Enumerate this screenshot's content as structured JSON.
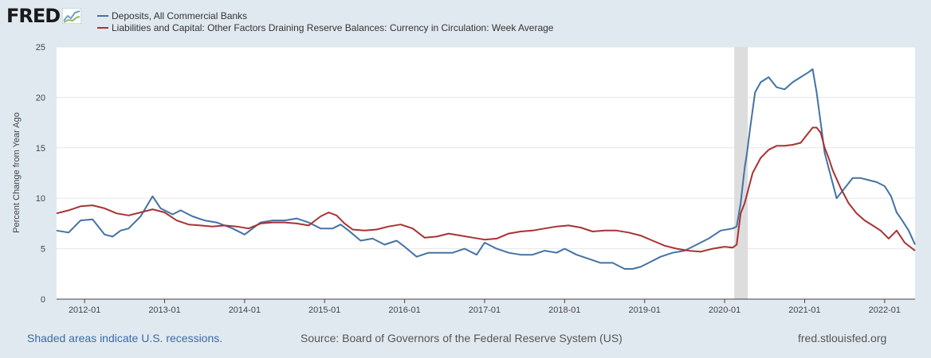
{
  "header": {
    "logo_text": "FRED",
    "logo_icon": "line-chart-icon"
  },
  "colors": {
    "deposits": "#4472a4",
    "currency": "#a83232",
    "recession": "#dddddd",
    "background": "#e1e9f0",
    "plot_bg": "#ffffff",
    "grid": "#e6e6e6",
    "link": "#3a6aa8"
  },
  "footer": {
    "recession_note": "Shaded areas indicate U.S. recessions.",
    "source": "Source: Board of Governors of the Federal Reserve System (US)",
    "site": "fred.stlouisfed.org"
  },
  "chart_data": {
    "type": "line",
    "title": "",
    "xlabel": "",
    "ylabel": "Percent Change from Year Ago",
    "ylim": [
      0,
      25
    ],
    "yticks": [
      "0",
      "5",
      "10",
      "15",
      "20",
      "25"
    ],
    "xlim": [
      2011.65,
      2022.38
    ],
    "xticks": [
      {
        "label": "2012-01",
        "value": 2012.0
      },
      {
        "label": "2013-01",
        "value": 2013.0
      },
      {
        "label": "2014-01",
        "value": 2014.0
      },
      {
        "label": "2015-01",
        "value": 2015.0
      },
      {
        "label": "2016-01",
        "value": 2016.0
      },
      {
        "label": "2017-01",
        "value": 2017.0
      },
      {
        "label": "2018-01",
        "value": 2018.0
      },
      {
        "label": "2019-01",
        "value": 2019.0
      },
      {
        "label": "2020-01",
        "value": 2020.0
      },
      {
        "label": "2021-01",
        "value": 2021.0
      },
      {
        "label": "2022-01",
        "value": 2022.0
      }
    ],
    "recessions": [
      {
        "start": 2020.12,
        "end": 2020.29
      }
    ],
    "series": [
      {
        "name": "Deposits, All Commercial Banks",
        "color": "#4472a4",
        "x": [
          2011.65,
          2011.8,
          2011.95,
          2012.1,
          2012.25,
          2012.35,
          2012.45,
          2012.55,
          2012.7,
          2012.85,
          2012.95,
          2013.1,
          2013.2,
          2013.35,
          2013.5,
          2013.65,
          2013.85,
          2014.0,
          2014.1,
          2014.2,
          2014.35,
          2014.5,
          2014.65,
          2014.8,
          2014.95,
          2015.1,
          2015.2,
          2015.3,
          2015.45,
          2015.6,
          2015.75,
          2015.9,
          2016.0,
          2016.15,
          2016.3,
          2016.45,
          2016.6,
          2016.75,
          2016.9,
          2017.0,
          2017.15,
          2017.3,
          2017.45,
          2017.6,
          2017.75,
          2017.9,
          2018.0,
          2018.15,
          2018.3,
          2018.45,
          2018.6,
          2018.75,
          2018.85,
          2018.95,
          2019.05,
          2019.2,
          2019.35,
          2019.5,
          2019.65,
          2019.8,
          2019.95,
          2020.1,
          2020.15,
          2020.2,
          2020.25,
          2020.28,
          2020.32,
          2020.38,
          2020.45,
          2020.55,
          2020.65,
          2020.75,
          2020.85,
          2020.95,
          2021.05,
          2021.1,
          2021.15,
          2021.2,
          2021.25,
          2021.3,
          2021.35,
          2021.4,
          2021.5,
          2021.6,
          2021.7,
          2021.8,
          2021.9,
          2022.0,
          2022.08,
          2022.15,
          2022.22,
          2022.3,
          2022.38
        ],
        "values": [
          6.8,
          6.6,
          7.8,
          7.9,
          6.4,
          6.2,
          6.8,
          7.0,
          8.2,
          10.2,
          9.0,
          8.4,
          8.8,
          8.2,
          7.8,
          7.6,
          7.0,
          6.4,
          7.0,
          7.6,
          7.8,
          7.8,
          8.0,
          7.6,
          7.0,
          7.0,
          7.4,
          6.8,
          5.8,
          6.0,
          5.4,
          5.8,
          5.2,
          4.2,
          4.6,
          4.6,
          4.6,
          5.0,
          4.4,
          5.6,
          5.0,
          4.6,
          4.4,
          4.4,
          4.8,
          4.6,
          5.0,
          4.4,
          4.0,
          3.6,
          3.6,
          3.0,
          3.0,
          3.2,
          3.6,
          4.2,
          4.6,
          4.8,
          5.4,
          6.0,
          6.8,
          7.0,
          7.2,
          9.5,
          13.0,
          14.5,
          17.0,
          20.5,
          21.5,
          22.0,
          21.0,
          20.8,
          21.5,
          22.0,
          22.5,
          22.8,
          20.5,
          17.5,
          14.5,
          13.0,
          11.5,
          10.0,
          11.0,
          12.0,
          12.0,
          11.8,
          11.6,
          11.2,
          10.2,
          8.6,
          7.8,
          6.8,
          5.4
        ]
      },
      {
        "name": "Liabilities and Capital: Other Factors Draining Reserve Balances: Currency in Circulation: Week Average",
        "color": "#a83232",
        "x": [
          2011.65,
          2011.8,
          2011.95,
          2012.1,
          2012.25,
          2012.4,
          2012.55,
          2012.7,
          2012.85,
          2013.0,
          2013.15,
          2013.3,
          2013.45,
          2013.6,
          2013.75,
          2013.9,
          2014.05,
          2014.2,
          2014.35,
          2014.5,
          2014.65,
          2014.8,
          2014.95,
          2015.05,
          2015.15,
          2015.25,
          2015.35,
          2015.5,
          2015.65,
          2015.8,
          2015.95,
          2016.1,
          2016.25,
          2016.4,
          2016.55,
          2016.7,
          2016.85,
          2017.0,
          2017.15,
          2017.3,
          2017.45,
          2017.6,
          2017.75,
          2017.9,
          2018.05,
          2018.2,
          2018.35,
          2018.5,
          2018.65,
          2018.8,
          2018.95,
          2019.1,
          2019.25,
          2019.4,
          2019.55,
          2019.7,
          2019.85,
          2020.0,
          2020.1,
          2020.15,
          2020.2,
          2020.25,
          2020.3,
          2020.35,
          2020.45,
          2020.55,
          2020.65,
          2020.75,
          2020.85,
          2020.95,
          2021.05,
          2021.1,
          2021.15,
          2021.2,
          2021.25,
          2021.3,
          2021.35,
          2021.45,
          2021.55,
          2021.65,
          2021.75,
          2021.85,
          2021.95,
          2022.05,
          2022.15,
          2022.25,
          2022.38
        ],
        "values": [
          8.5,
          8.8,
          9.2,
          9.3,
          9.0,
          8.5,
          8.3,
          8.6,
          8.9,
          8.6,
          7.8,
          7.4,
          7.3,
          7.2,
          7.3,
          7.2,
          7.0,
          7.5,
          7.6,
          7.6,
          7.5,
          7.3,
          8.2,
          8.6,
          8.3,
          7.5,
          6.9,
          6.8,
          6.9,
          7.2,
          7.4,
          7.0,
          6.1,
          6.2,
          6.5,
          6.3,
          6.1,
          5.9,
          6.0,
          6.5,
          6.7,
          6.8,
          7.0,
          7.2,
          7.3,
          7.1,
          6.7,
          6.8,
          6.8,
          6.6,
          6.3,
          5.8,
          5.3,
          5.0,
          4.8,
          4.7,
          5.0,
          5.2,
          5.1,
          5.4,
          8.5,
          9.5,
          11.0,
          12.5,
          14.0,
          14.8,
          15.2,
          15.2,
          15.3,
          15.5,
          16.5,
          17.0,
          17.0,
          16.5,
          15.0,
          14.0,
          12.8,
          11.0,
          9.5,
          8.5,
          7.8,
          7.3,
          6.8,
          6.0,
          6.8,
          5.6,
          4.8
        ]
      }
    ]
  }
}
